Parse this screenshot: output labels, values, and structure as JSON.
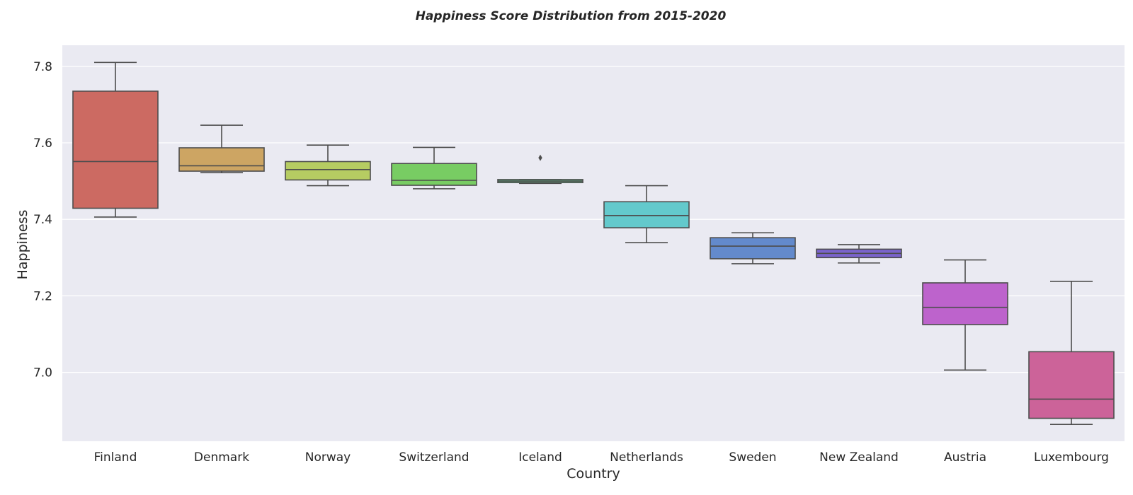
{
  "chart_data": {
    "type": "box",
    "title": "Happiness Score Distribution from 2015-2020",
    "xlabel": "Country",
    "ylabel": "Happiness",
    "ylim": [
      6.82,
      7.855
    ],
    "yticks": [
      7.0,
      7.2,
      7.4,
      7.6,
      7.8
    ],
    "ytick_labels": [
      "7.0",
      "7.2",
      "7.4",
      "7.6",
      "7.8"
    ],
    "grid": true,
    "background": "#eaeaf2",
    "line_color": "#4d4d4d",
    "categories": [
      "Finland",
      "Denmark",
      "Norway",
      "Switzerland",
      "Iceland",
      "Netherlands",
      "Sweden",
      "New Zealand",
      "Austria",
      "Luxembourg"
    ],
    "boxes": [
      {
        "whisker_low": 7.406,
        "q1": 7.429,
        "median": 7.551,
        "q3": 7.735,
        "whisker_high": 7.81,
        "outliers": [],
        "color": "#cc6a62"
      },
      {
        "whisker_low": 7.522,
        "q1": 7.526,
        "median": 7.54,
        "q3": 7.587,
        "whisker_high": 7.646,
        "outliers": [],
        "color": "#cda563"
      },
      {
        "whisker_low": 7.488,
        "q1": 7.503,
        "median": 7.53,
        "q3": 7.551,
        "whisker_high": 7.594,
        "outliers": [],
        "color": "#b6cc62"
      },
      {
        "whisker_low": 7.48,
        "q1": 7.489,
        "median": 7.502,
        "q3": 7.546,
        "whisker_high": 7.588,
        "outliers": [],
        "color": "#78cc63"
      },
      {
        "whisker_low": 7.494,
        "q1": 7.496,
        "median": 7.5,
        "q3": 7.504,
        "whisker_high": 7.504,
        "outliers": [
          7.561
        ],
        "color": "#63cc8e"
      },
      {
        "whisker_low": 7.339,
        "q1": 7.378,
        "median": 7.41,
        "q3": 7.446,
        "whisker_high": 7.488,
        "outliers": [],
        "color": "#63c9cc"
      },
      {
        "whisker_low": 7.284,
        "q1": 7.297,
        "median": 7.33,
        "q3": 7.352,
        "whisker_high": 7.365,
        "outliers": [],
        "color": "#638acc"
      },
      {
        "whisker_low": 7.286,
        "q1": 7.3,
        "median": 7.311,
        "q3": 7.322,
        "whisker_high": 7.334,
        "outliers": [],
        "color": "#7a63cc"
      },
      {
        "whisker_low": 7.006,
        "q1": 7.125,
        "median": 7.17,
        "q3": 7.234,
        "whisker_high": 7.294,
        "outliers": [],
        "color": "#bd63cc"
      },
      {
        "whisker_low": 6.864,
        "q1": 6.88,
        "median": 6.93,
        "q3": 7.054,
        "whisker_high": 7.238,
        "outliers": [],
        "color": "#cc6399"
      }
    ]
  }
}
